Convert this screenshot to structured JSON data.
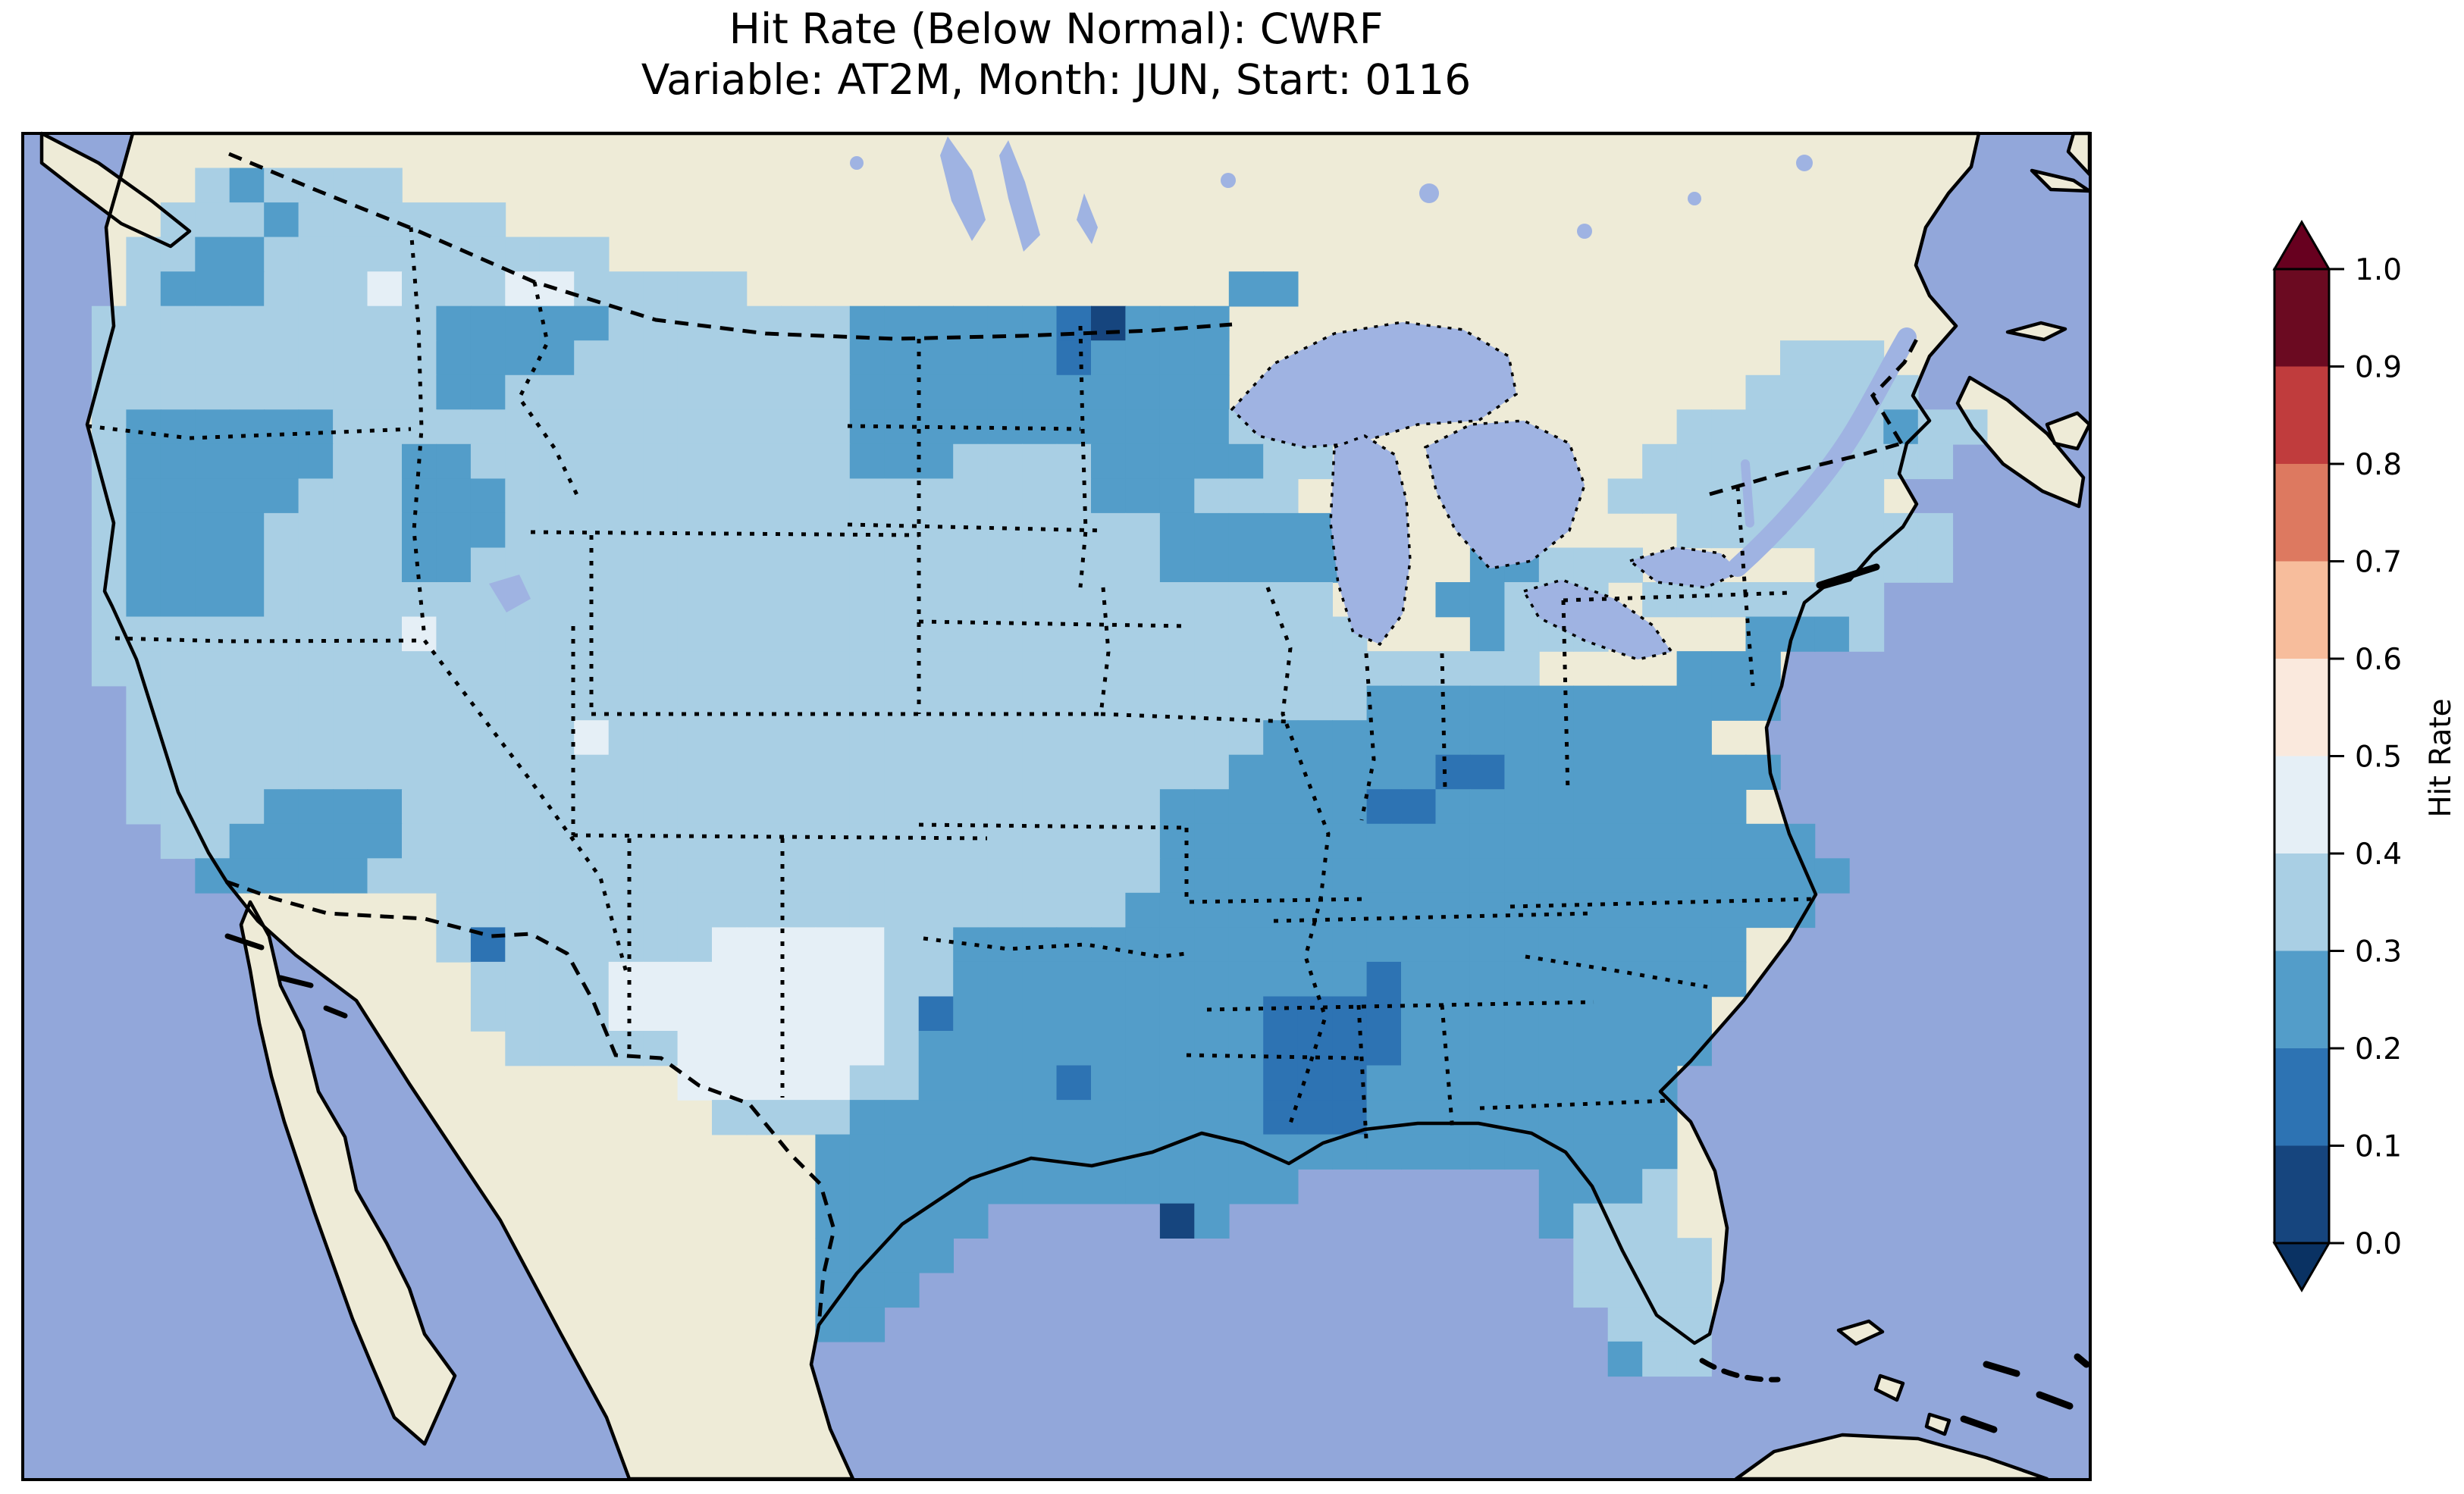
{
  "title": {
    "line1": "Hit Rate (Below Normal): CWRF",
    "line2": "Variable: AT2M, Month: JUN, Start: 0116"
  },
  "colorbar": {
    "label": "Hit Rate",
    "ticks": [
      "1.0",
      "0.9",
      "0.8",
      "0.7",
      "0.6",
      "0.5",
      "0.4",
      "0.3",
      "0.2",
      "0.1",
      "0.0"
    ],
    "under_color": "#0a3263",
    "over_color": "#67001f",
    "outline_color": "#000000"
  },
  "map": {
    "ocean_color": "#92a7da",
    "land_color": "#eeebd7",
    "lake_color": "#9fb3e2",
    "coast_color": "#000000",
    "frame_color": "#000000"
  },
  "chart_data": {
    "type": "heatmap",
    "title": "Hit Rate (Below Normal): CWRF",
    "subtitle": "Variable: AT2M, Month: JUN, Start: 0116",
    "metric": "Hit Rate (Below Normal)",
    "model": "CWRF",
    "variable": "AT2M",
    "month": "JUN",
    "start": "0116",
    "colormap": "RdBu_r (discrete, 0.1 bins, extended both ends)",
    "value_range": [
      0.0,
      1.0
    ],
    "colorbar_side": "right",
    "region": "Continental United States (values plotted only over CONUS grid)",
    "bins": [
      {
        "code": "0",
        "range": "0.0-0.1",
        "color": "#16457e"
      },
      {
        "code": "1",
        "range": "0.1-0.2",
        "color": "#2d73b3"
      },
      {
        "code": "2",
        "range": "0.2-0.3",
        "color": "#539dc9"
      },
      {
        "code": "3",
        "range": "0.3-0.4",
        "color": "#a9cfe4"
      },
      {
        "code": "4",
        "range": "0.4-0.5",
        "color": "#e5eff6"
      },
      {
        "code": "5",
        "range": "0.5-0.6",
        "color": "#fae9dd"
      },
      {
        "code": "6",
        "range": "0.6-0.7",
        "color": "#f7bd9c"
      },
      {
        "code": "7",
        "range": "0.7-0.8",
        "color": "#dd7960"
      },
      {
        "code": "8",
        "range": "0.8-0.9",
        "color": "#c03c3d"
      },
      {
        "code": "9",
        "range": "0.9-1.0",
        "color": "#6b0a21"
      }
    ],
    "grid_note": "Each character = one model grid cell over CONUS; '.' = no data (outside US). Codes map to bins above. Rows run north to south.",
    "grid_rows": [
      "............................................................",
      ".....323333.................................................",
      "....3332333333..............................................",
      "...33223333333333...........................................",
      "...322233343334433333..............22.......................",
      "..333333333322222333333322222210222.........................",
      "..333333333322223333333322222212222................333......",
      "..333333333322333333333322222222222...............33333.....",
      "..3222222333333333333333222222222223333.........3333332 33.....",
      "..322222233223333333333322233332222233.........333333333.....",
      "..3222223332223333333333333333322233 3.........33333333......",
      "..32222333322233333333333333333332 22222....3....33333333......",
      "..3222233332233333333333333333333222222...22333.....3333......",
      "..322223333333333333333333333333333333...22333.3333333.......",
      "..3333333334333333333333333333333333333...2333....22 23........",
      "..333333333333333333333333333333333333333333....222.........",
      "...333333333333333333333333333333333333222222222222.........",
      "...3333333333333433333333333333333332222222222222..........",
      "...3333333333333333333333333333333322222211222222 22..........",
      "...33332222333333333333333333333322222211222222222.........",
      "....332222233333333333333333333332222222222222222222.........",
      ".....222223333333333333333333333322222222222222222222........",
      "............333333333333333333332222222222222222222 2........",
      "............31333333444443322222222222222222222222.........",
      ".............3333444444443322222222222212222222222..........",
      ".............333344444444312222222221111222222222...........",
      "..............333334444443222222222211112 22222222...........",
      "...................444443322221222221112 22222222............",
      "....................33332222222222221112 22222222............",
      ".......................2222222222222222222222222............",
      ".......................22222222222222.......2223............",
      ".......................22222.....02.........2333............",
      ".......................2222..................3333...........",
      ".......................222...................3333...........",
      ".......................22.....................333...........",
      "..............................................233...........",
      "............................................................",
      "............................................................",
      "............................................................"
    ]
  }
}
